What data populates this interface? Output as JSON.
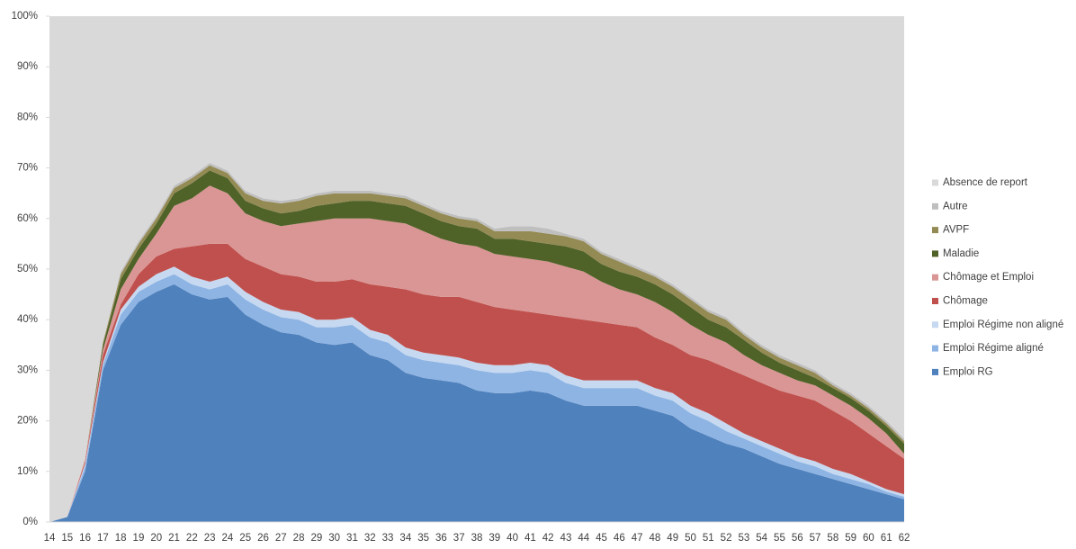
{
  "chart_data": {
    "type": "stacked_area",
    "categories": [
      "14",
      "15",
      "16",
      "17",
      "18",
      "19",
      "20",
      "21",
      "22",
      "23",
      "24",
      "25",
      "26",
      "27",
      "28",
      "29",
      "30",
      "31",
      "32",
      "33",
      "34",
      "35",
      "36",
      "37",
      "38",
      "39",
      "40",
      "41",
      "42",
      "43",
      "44",
      "45",
      "46",
      "47",
      "48",
      "49",
      "50",
      "51",
      "52",
      "53",
      "54",
      "55",
      "56",
      "57",
      "58",
      "59",
      "60",
      "61",
      "62"
    ],
    "series": [
      {
        "name": "Emploi RG",
        "color": "#4f81bd",
        "values": [
          0,
          1,
          10,
          30,
          39,
          43.5,
          45.5,
          47,
          45,
          44,
          44.5,
          41,
          39,
          37.5,
          37,
          35.5,
          35,
          35.5,
          33,
          32,
          29.5,
          28.5,
          28,
          27.5,
          26,
          25.5,
          25.5,
          26,
          25.5,
          24,
          23,
          23,
          23,
          23,
          22,
          21,
          18.5,
          17,
          15.5,
          14.5,
          13,
          11.5,
          10.5,
          9.5,
          8.5,
          7.5,
          6.5,
          5.5,
          4.5
        ]
      },
      {
        "name": "Emploi Régime aligné",
        "color": "#8eb4e3",
        "values": [
          0,
          0,
          1,
          1,
          2,
          2,
          2,
          2,
          2,
          2,
          2.5,
          3,
          3,
          3,
          3,
          3,
          3.5,
          3.5,
          3.5,
          3.5,
          3.5,
          3.5,
          3.5,
          3.5,
          4,
          4,
          4,
          4,
          4,
          3.5,
          3.5,
          3.5,
          3.5,
          3.5,
          3,
          3,
          3,
          3,
          2.5,
          2,
          2,
          2,
          1.5,
          1.5,
          1,
          1,
          1,
          0.5,
          0.5
        ]
      },
      {
        "name": "Emploi Régime non aligné",
        "color": "#c6d9f1",
        "values": [
          0,
          0,
          0.5,
          0.5,
          1,
          1,
          1.5,
          1.5,
          1.5,
          1.5,
          1.5,
          1.5,
          1.5,
          1.5,
          1.5,
          1.5,
          1.5,
          1.5,
          1.5,
          1.5,
          1.5,
          1.5,
          1.5,
          1.5,
          1.5,
          1.5,
          1.5,
          1.5,
          1.5,
          1.5,
          1.5,
          1.5,
          1.5,
          1.5,
          1.5,
          1.5,
          1.5,
          1.5,
          1.5,
          1,
          1,
          1,
          1,
          1,
          1,
          1,
          0.5,
          0.5,
          0.5
        ]
      },
      {
        "name": "Chômage",
        "color": "#c0504d",
        "values": [
          0,
          0,
          0.5,
          1.5,
          1,
          2.5,
          3.5,
          3.5,
          6,
          7.5,
          6.5,
          6.5,
          7,
          7,
          7,
          7.5,
          7.5,
          7.5,
          9,
          9.5,
          11.5,
          11.5,
          11.5,
          12,
          12,
          11.5,
          11,
          10,
          10,
          11.5,
          12,
          11.5,
          11,
          10.5,
          10,
          9.5,
          10,
          10.5,
          11,
          11.5,
          11.5,
          11.5,
          12,
          12,
          11.5,
          10.5,
          9.5,
          8.5,
          7
        ]
      },
      {
        "name": "Chômage et Emploi",
        "color": "#d99694",
        "values": [
          0,
          0,
          0.5,
          1,
          3,
          3,
          4.5,
          8.5,
          9.5,
          11.5,
          10,
          9,
          9,
          9.5,
          10.5,
          12,
          12.5,
          12,
          13,
          13,
          13,
          12.5,
          11.5,
          10.5,
          11,
          10.5,
          10.5,
          10.5,
          10.5,
          10,
          9.5,
          8,
          7,
          6.5,
          7,
          6.5,
          6,
          5,
          5,
          4,
          3.5,
          3.5,
          3,
          3,
          3,
          3,
          3,
          2.5,
          1
        ]
      },
      {
        "name": "Maladie",
        "color": "#4f6228",
        "values": [
          0,
          0,
          0,
          1,
          2,
          2,
          2,
          2.5,
          3,
          3,
          3,
          2.5,
          2.5,
          2.5,
          2.5,
          3,
          3,
          3.5,
          3.5,
          3.5,
          3.5,
          3.5,
          3.5,
          3.5,
          3.5,
          3,
          3.5,
          3.5,
          3.5,
          4,
          4,
          3.5,
          3.5,
          3.5,
          3.5,
          3.5,
          3.5,
          3,
          3,
          3,
          2.5,
          2,
          2,
          1.5,
          1.5,
          1.5,
          1.5,
          1.5,
          2
        ]
      },
      {
        "name": "AVPF",
        "color": "#948a54",
        "values": [
          0,
          0,
          0,
          0.5,
          1,
          1,
          1,
          1,
          1,
          1,
          1,
          1.5,
          1.5,
          2,
          2,
          2,
          2,
          1.5,
          1.5,
          1.5,
          1.5,
          1.5,
          1.5,
          1.5,
          1.5,
          1.5,
          1.5,
          2,
          2,
          2,
          2,
          2,
          2,
          1.5,
          1.5,
          1.5,
          1.5,
          1.5,
          1.5,
          1,
          1,
          1,
          1,
          1,
          0.5,
          0.5,
          0.5,
          0.5,
          0.5
        ]
      },
      {
        "name": "Autre",
        "color": "#bfbfbf",
        "values": [
          0,
          0,
          0,
          0,
          0.5,
          0.5,
          0.5,
          0.5,
          0.5,
          0.5,
          0.5,
          0.5,
          0.5,
          0.5,
          0.5,
          0.5,
          0.5,
          0.5,
          0.5,
          0.5,
          0.5,
          0.5,
          0.5,
          0.5,
          0.5,
          0.5,
          1,
          1,
          1,
          0.5,
          0.5,
          0.5,
          0.5,
          0.5,
          0.5,
          0.5,
          0.5,
          0.5,
          0.5,
          0.5,
          0.5,
          0.5,
          0.5,
          0.5,
          0.5,
          0.5,
          0.5,
          0.5,
          0.5
        ]
      },
      {
        "name": "Absence de report",
        "color": "#d9d9d9",
        "values": [
          100,
          99,
          87.5,
          64.5,
          50.5,
          44.5,
          39.5,
          33.5,
          31.5,
          29,
          30.5,
          34.5,
          36,
          36.5,
          36,
          35,
          34.5,
          34.5,
          34.5,
          35,
          35.5,
          37,
          38.5,
          39.5,
          40,
          42,
          41.5,
          41.5,
          42,
          43,
          44,
          46.5,
          48,
          49.5,
          51,
          53,
          55.5,
          58,
          59.5,
          62.5,
          65,
          67,
          68.5,
          70,
          72.5,
          74.5,
          77,
          80,
          83.5
        ]
      }
    ],
    "ylim": [
      0,
      100
    ],
    "yticks": [
      {
        "value": 0,
        "label": "0%"
      },
      {
        "value": 10,
        "label": "10%"
      },
      {
        "value": 20,
        "label": "20%"
      },
      {
        "value": 30,
        "label": "30%"
      },
      {
        "value": 40,
        "label": "40%"
      },
      {
        "value": 50,
        "label": "50%"
      },
      {
        "value": 60,
        "label": "60%"
      },
      {
        "value": 70,
        "label": "70%"
      },
      {
        "value": 80,
        "label": "80%"
      },
      {
        "value": 90,
        "label": "90%"
      },
      {
        "value": 100,
        "label": "100%"
      }
    ],
    "legend": "right"
  }
}
